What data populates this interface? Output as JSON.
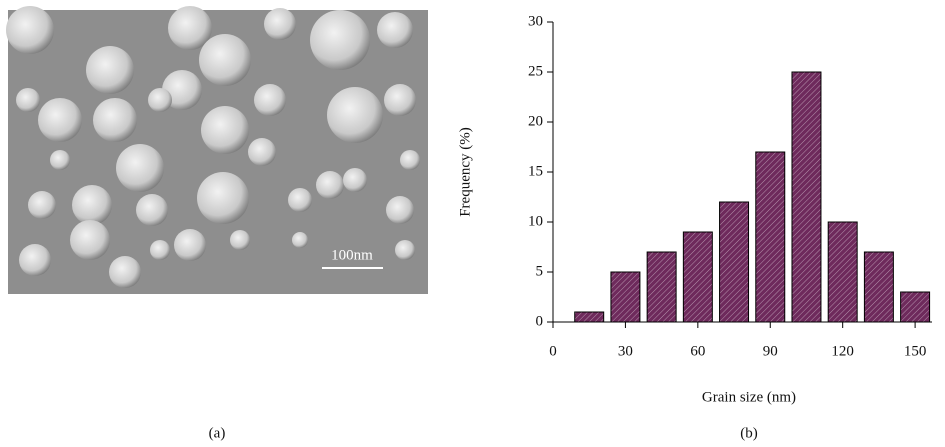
{
  "image": {
    "scale_label": "100nm"
  },
  "panel_labels": [
    "(a)",
    "(b)"
  ],
  "chart_data": {
    "type": "bar",
    "x": [
      15,
      30,
      45,
      60,
      75,
      90,
      105,
      120,
      135,
      150
    ],
    "values": [
      1,
      5,
      7,
      9,
      12,
      17,
      25,
      10,
      7,
      3
    ],
    "color": "#6e2a5c",
    "xlabel": "Grain size (nm)",
    "ylabel": "Frequency (%)",
    "xlim": [
      0,
      157
    ],
    "xticks": [
      0,
      30,
      60,
      90,
      120,
      150
    ],
    "ylim": [
      0,
      30
    ],
    "yticks": [
      0,
      5,
      10,
      15,
      20,
      25,
      30
    ],
    "grid": false
  }
}
